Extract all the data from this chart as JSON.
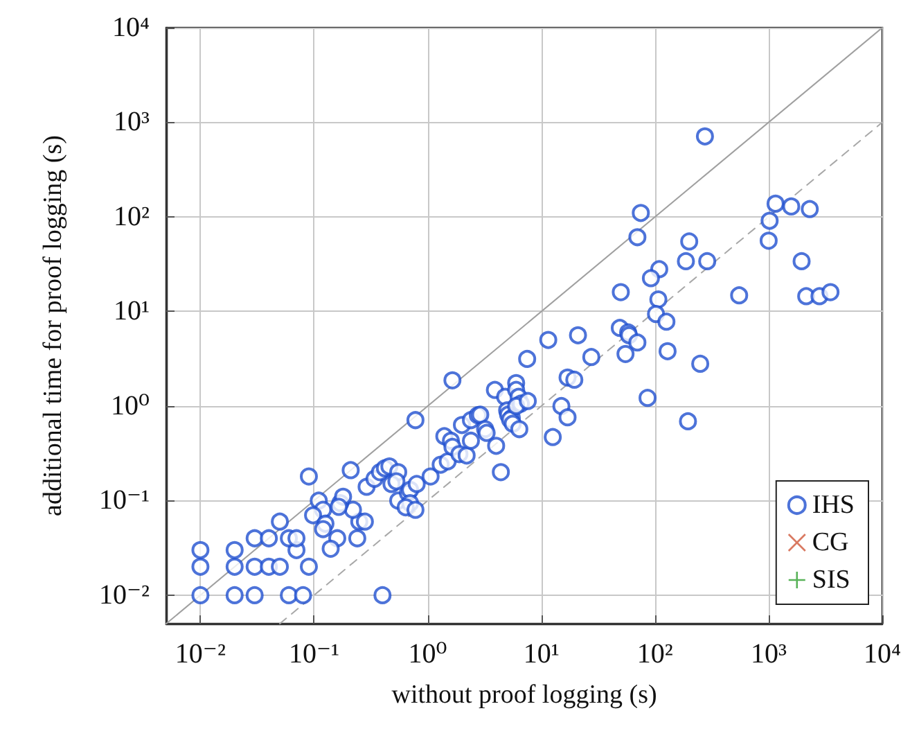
{
  "chart_data": {
    "type": "scatter",
    "xlabel": "without proof logging (s)",
    "ylabel": "additional time for proof logging (s)",
    "log": "xy",
    "grid": true,
    "legend": "bottom right",
    "xlim": [
      0.005,
      10000
    ],
    "ylim": [
      0.005,
      10000
    ],
    "xticks": [
      {
        "value": 0.01,
        "label": "10⁻²"
      },
      {
        "value": 0.1,
        "label": "10⁻¹"
      },
      {
        "value": 1,
        "label": "10⁰"
      },
      {
        "value": 10,
        "label": "10¹"
      },
      {
        "value": 100,
        "label": "10²"
      },
      {
        "value": 1000,
        "label": "10³"
      },
      {
        "value": 10000,
        "label": "10⁴"
      }
    ],
    "yticks": [
      {
        "value": 0.01,
        "label": "10⁻²"
      },
      {
        "value": 0.1,
        "label": "10⁻¹"
      },
      {
        "value": 1,
        "label": "10⁰"
      },
      {
        "value": 10,
        "label": "10¹"
      },
      {
        "value": 100,
        "label": "10²"
      },
      {
        "value": 1000,
        "label": "10³"
      },
      {
        "value": 10000,
        "label": "10⁴"
      }
    ],
    "series": [
      {
        "name": "IHS",
        "color": "#2050d0",
        "marker": "circle",
        "x": [
          0.01,
          0.02,
          0.03,
          0.06,
          0.08,
          0.4,
          0.01,
          0.02,
          0.03,
          0.04,
          0.05,
          0.09,
          0.01,
          0.02,
          0.07,
          0.03,
          0.04,
          0.06,
          0.07,
          0.05,
          0.09,
          0.21,
          0.11,
          0.12,
          0.098,
          0.126,
          0.12,
          0.16,
          0.14,
          0.24,
          0.25,
          0.28,
          0.22,
          0.17,
          0.18,
          0.165,
          0.29,
          0.34,
          0.38,
          0.42,
          0.46,
          0.55,
          0.48,
          0.53,
          0.55,
          0.67,
          0.7,
          0.8,
          0.7,
          0.64,
          0.78,
          0.78,
          1.06,
          1.3,
          1.5,
          1.4,
          1.6,
          1.65,
          1.9,
          2.2,
          2.0,
          2.4,
          2.4,
          2.76,
          2.9,
          3.2,
          3.3,
          4.0,
          4.4,
          3.9,
          4.8,
          5.0,
          5.1,
          5.5,
          5.3,
          5.6,
          6.4,
          6.0,
          6.0,
          6.3,
          6.6,
          6.0,
          7.6,
          1.65,
          7.5,
          275,
          1150,
          1580,
          2300,
          1020,
          1000,
          1950,
          2140,
          2800,
          3500,
          550,
          75,
          70,
          200,
          187,
          288,
          109,
          92,
          50,
          107,
          102,
          126,
          49,
          58,
          59,
          70,
          55,
          129,
          250,
          27.5,
          21,
          11.5,
          17,
          19.5,
          15,
          17,
          12.6,
          86,
          195
        ],
        "values": [
          0.01,
          0.01,
          0.01,
          0.01,
          0.01,
          0.01,
          0.02,
          0.02,
          0.02,
          0.02,
          0.02,
          0.02,
          0.03,
          0.03,
          0.03,
          0.04,
          0.04,
          0.04,
          0.04,
          0.06,
          0.18,
          0.21,
          0.1,
          0.08,
          0.07,
          0.057,
          0.05,
          0.04,
          0.031,
          0.04,
          0.06,
          0.06,
          0.08,
          0.094,
          0.11,
          0.086,
          0.14,
          0.17,
          0.2,
          0.22,
          0.23,
          0.2,
          0.15,
          0.16,
          0.1,
          0.12,
          0.13,
          0.15,
          0.094,
          0.085,
          0.08,
          0.71,
          0.18,
          0.24,
          0.26,
          0.48,
          0.43,
          0.37,
          0.31,
          0.3,
          0.63,
          0.43,
          0.71,
          0.8,
          0.81,
          0.57,
          0.52,
          0.38,
          0.2,
          1.48,
          1.25,
          0.9,
          0.81,
          0.75,
          0.72,
          0.65,
          0.57,
          1.75,
          1.48,
          1.25,
          1.06,
          1.0,
          1.13,
          1.87,
          3.15,
          710,
          138,
          129,
          121,
          91,
          56,
          34,
          14.5,
          14.5,
          16,
          14.8,
          110,
          61,
          55,
          34,
          34,
          28,
          22.5,
          16,
          13.4,
          9.4,
          7.8,
          6.7,
          6.0,
          5.6,
          4.7,
          3.55,
          3.8,
          2.8,
          3.3,
          5.6,
          5.0,
          2.0,
          1.9,
          1.0,
          0.76,
          0.47,
          1.22,
          0.69
        ]
      },
      {
        "name": "CG",
        "color": "#d0583a",
        "marker": "cross"
      },
      {
        "name": "SIS",
        "color": "#30a030",
        "marker": "plus"
      },
      {
        "type": "line",
        "color": "#a0a0a0",
        "line_style": "solid",
        "x": [
          0.005,
          10000
        ],
        "values": [
          0.005,
          10000
        ]
      },
      {
        "type": "line",
        "color": "#a8a8a8",
        "line_style": "dashed",
        "x": [
          0.05,
          10000
        ],
        "values": [
          0.005,
          1000
        ]
      }
    ]
  }
}
